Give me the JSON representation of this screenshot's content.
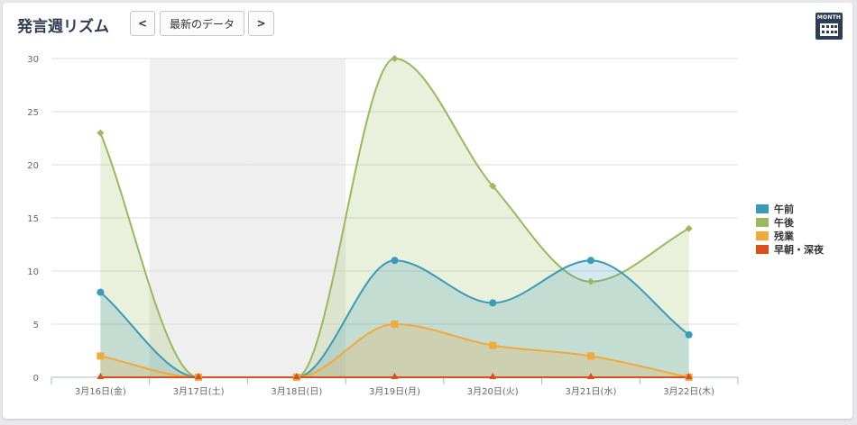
{
  "header": {
    "title": "発言週リズム",
    "prev_label": "<",
    "latest_label": "最新のデータ",
    "next_label": ">",
    "month_icon_label": "MONTH"
  },
  "chart_data": {
    "type": "area",
    "categories": [
      "3月16日(金)",
      "3月17日(土)",
      "3月18日(日)",
      "3月19日(月)",
      "3月20日(火)",
      "3月21日(水)",
      "3月22日(木)"
    ],
    "ylim": [
      0,
      30
    ],
    "yticks": [
      0,
      5,
      10,
      15,
      20,
      25,
      30
    ],
    "grid": true,
    "legend_position": "right",
    "shaded_categories": [
      "3月17日(土)",
      "3月18日(日)"
    ],
    "series": [
      {
        "name": "午前",
        "color": "#3a9bb8",
        "marker": "circle",
        "values": [
          8,
          0,
          0,
          11,
          7,
          11,
          4
        ]
      },
      {
        "name": "午後",
        "color": "#9ab95e",
        "marker": "diamond",
        "values": [
          23,
          0,
          0,
          30,
          18,
          9,
          14
        ]
      },
      {
        "name": "残業",
        "color": "#f0a93a",
        "marker": "square",
        "values": [
          2,
          0,
          0,
          5,
          3,
          2,
          0
        ]
      },
      {
        "name": "早朝・深夜",
        "color": "#d9501f",
        "marker": "triangle",
        "values": [
          0,
          0,
          0,
          0,
          0,
          0,
          0
        ]
      }
    ]
  }
}
